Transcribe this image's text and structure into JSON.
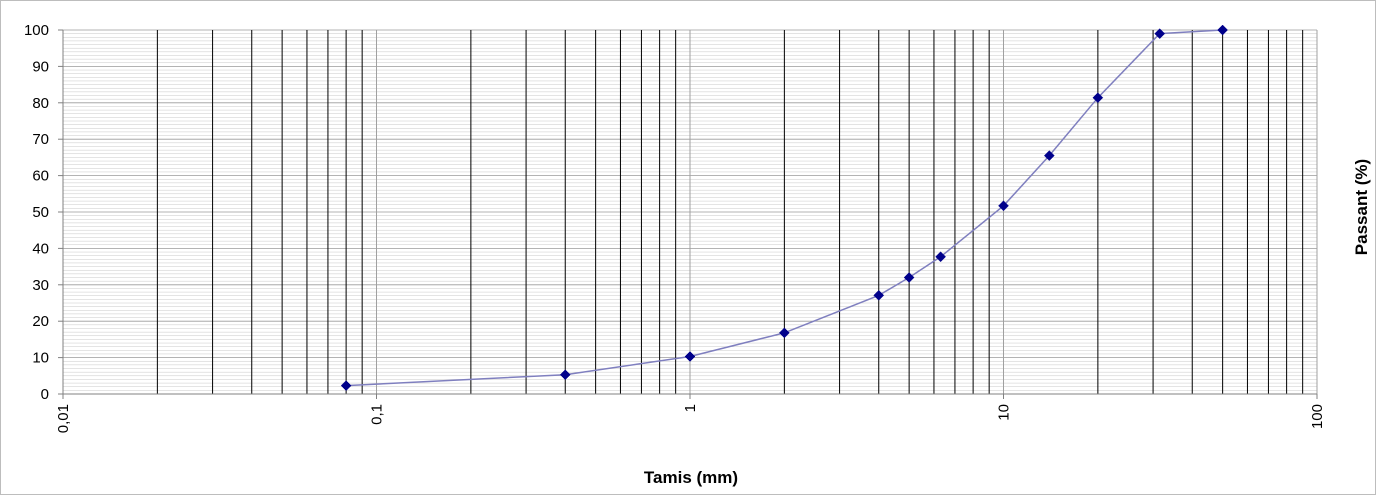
{
  "chart_data": {
    "type": "scatter",
    "title": "",
    "xlabel": "Tamis (mm)",
    "ylabel": "Passant (%)",
    "x_scale": "log",
    "xlim": [
      0.01,
      100
    ],
    "ylim": [
      0,
      100
    ],
    "x_tick_labels": [
      "0,01",
      "0,1",
      "1",
      "10",
      "100"
    ],
    "x_tick_values": [
      0.01,
      0.1,
      1,
      10,
      100
    ],
    "y_tick_labels": [
      "0",
      "10",
      "20",
      "30",
      "40",
      "50",
      "60",
      "70",
      "80",
      "90",
      "100"
    ],
    "y_tick_values": [
      0,
      10,
      20,
      30,
      40,
      50,
      60,
      70,
      80,
      90,
      100
    ],
    "grid": true,
    "legend": "none",
    "series": [
      {
        "marker": "diamond",
        "line_color": "#7f7fbf",
        "marker_color": "#00008b",
        "x": [
          0.08,
          0.4,
          1,
          2,
          4,
          5,
          6.3,
          10,
          14,
          20,
          31.5,
          50
        ],
        "y": [
          2.3,
          5.3,
          10.3,
          16.8,
          27.1,
          32.0,
          37.7,
          51.7,
          65.5,
          81.4,
          99.0,
          100
        ]
      }
    ]
  }
}
